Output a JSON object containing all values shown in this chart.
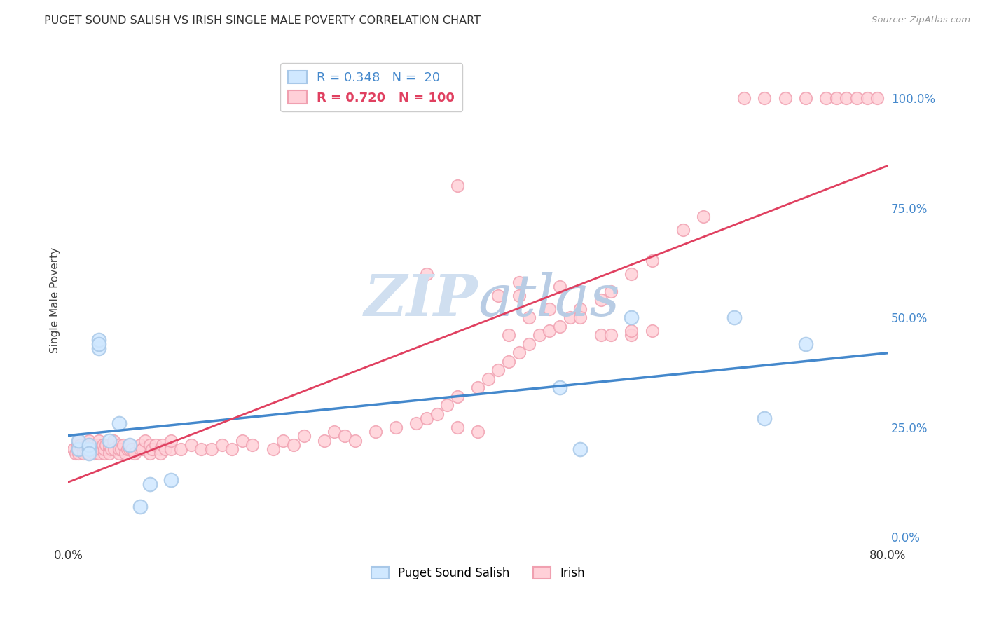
{
  "title": "PUGET SOUND SALISH VS IRISH SINGLE MALE POVERTY CORRELATION CHART",
  "source": "Source: ZipAtlas.com",
  "ylabel": "Single Male Poverty",
  "legend_blue_r": "R = 0.348",
  "legend_blue_n": "N =  20",
  "legend_pink_r": "R = 0.720",
  "legend_pink_n": "N = 100",
  "legend_blue_label": "Puget Sound Salish",
  "legend_pink_label": "Irish",
  "xlim": [
    0.0,
    0.8
  ],
  "ylim": [
    -0.02,
    1.1
  ],
  "yticks": [
    0.0,
    0.25,
    0.5,
    0.75,
    1.0
  ],
  "ytick_labels": [
    "0.0%",
    "25.0%",
    "50.0%",
    "75.0%",
    "100.0%"
  ],
  "xticks": [
    0.0,
    0.1,
    0.2,
    0.3,
    0.4,
    0.5,
    0.6,
    0.7,
    0.8
  ],
  "xtick_labels": [
    "0.0%",
    "",
    "",
    "",
    "",
    "",
    "",
    "",
    "80.0%"
  ],
  "blue_scatter_x": [
    0.01,
    0.01,
    0.02,
    0.02,
    0.02,
    0.03,
    0.03,
    0.03,
    0.04,
    0.05,
    0.06,
    0.07,
    0.08,
    0.1,
    0.48,
    0.5,
    0.55,
    0.65,
    0.68,
    0.72
  ],
  "blue_scatter_y": [
    0.2,
    0.22,
    0.2,
    0.21,
    0.19,
    0.43,
    0.45,
    0.44,
    0.22,
    0.26,
    0.21,
    0.07,
    0.12,
    0.13,
    0.34,
    0.2,
    0.5,
    0.5,
    0.27,
    0.44
  ],
  "pink_scatter_x": [
    0.005,
    0.007,
    0.009,
    0.01,
    0.01,
    0.01,
    0.012,
    0.015,
    0.015,
    0.017,
    0.018,
    0.02,
    0.02,
    0.02,
    0.022,
    0.022,
    0.024,
    0.025,
    0.025,
    0.027,
    0.03,
    0.03,
    0.03,
    0.03,
    0.032,
    0.034,
    0.035,
    0.035,
    0.037,
    0.04,
    0.04,
    0.04,
    0.042,
    0.044,
    0.045,
    0.05,
    0.05,
    0.05,
    0.052,
    0.054,
    0.056,
    0.058,
    0.06,
    0.06,
    0.062,
    0.065,
    0.07,
    0.07,
    0.072,
    0.075,
    0.08,
    0.08,
    0.082,
    0.085,
    0.09,
    0.09,
    0.092,
    0.095,
    0.1,
    0.1,
    0.11,
    0.12,
    0.13,
    0.14,
    0.15,
    0.16,
    0.17,
    0.18,
    0.2,
    0.21,
    0.22,
    0.23,
    0.25,
    0.26,
    0.27,
    0.28,
    0.3,
    0.32,
    0.34,
    0.35,
    0.36,
    0.37,
    0.38,
    0.4,
    0.41,
    0.42,
    0.43,
    0.44,
    0.45,
    0.46,
    0.47,
    0.48,
    0.49,
    0.5,
    0.52,
    0.53,
    0.55,
    0.57,
    0.6,
    0.62
  ],
  "pink_scatter_y": [
    0.2,
    0.19,
    0.21,
    0.2,
    0.22,
    0.19,
    0.21,
    0.2,
    0.19,
    0.2,
    0.21,
    0.19,
    0.2,
    0.22,
    0.2,
    0.21,
    0.2,
    0.19,
    0.21,
    0.2,
    0.2,
    0.19,
    0.21,
    0.22,
    0.2,
    0.21,
    0.19,
    0.2,
    0.21,
    0.2,
    0.19,
    0.21,
    0.2,
    0.22,
    0.2,
    0.19,
    0.21,
    0.2,
    0.2,
    0.21,
    0.19,
    0.2,
    0.2,
    0.21,
    0.2,
    0.19,
    0.2,
    0.21,
    0.2,
    0.22,
    0.19,
    0.21,
    0.2,
    0.21,
    0.2,
    0.19,
    0.21,
    0.2,
    0.2,
    0.22,
    0.2,
    0.21,
    0.2,
    0.2,
    0.21,
    0.2,
    0.22,
    0.21,
    0.2,
    0.22,
    0.21,
    0.23,
    0.22,
    0.24,
    0.23,
    0.22,
    0.24,
    0.25,
    0.26,
    0.27,
    0.28,
    0.3,
    0.32,
    0.34,
    0.36,
    0.38,
    0.4,
    0.42,
    0.44,
    0.46,
    0.47,
    0.48,
    0.5,
    0.52,
    0.54,
    0.56,
    0.6,
    0.63,
    0.7,
    0.73
  ],
  "pink_scatter_top_x": [
    0.35,
    0.38,
    0.42,
    0.44,
    0.44,
    0.48,
    0.5
  ],
  "pink_scatter_top_y": [
    0.6,
    0.8,
    0.55,
    0.55,
    0.58,
    0.57,
    0.5
  ],
  "pink_far_right_x": [
    0.66,
    0.68,
    0.7,
    0.72,
    0.74,
    0.75,
    0.76,
    0.77,
    0.78,
    0.79
  ],
  "pink_far_right_y": [
    1.0,
    1.0,
    1.0,
    1.0,
    1.0,
    1.0,
    1.0,
    1.0,
    1.0,
    1.0
  ],
  "pink_mid_x": [
    0.38,
    0.4,
    0.43,
    0.45,
    0.47,
    0.52,
    0.53,
    0.55,
    0.55,
    0.57
  ],
  "pink_mid_y": [
    0.25,
    0.24,
    0.46,
    0.5,
    0.52,
    0.46,
    0.46,
    0.46,
    0.47,
    0.47
  ],
  "blue_color": "#A8C8E8",
  "blue_fill": "#D0E8FF",
  "pink_color": "#F0A0B0",
  "pink_fill": "#FFD0D8",
  "blue_line_color": "#4488CC",
  "pink_line_color": "#E04060",
  "watermark_color": "#D0DFF0",
  "background_color": "#FFFFFF",
  "grid_color": "#CCCCCC",
  "right_tick_color": "#4488CC"
}
